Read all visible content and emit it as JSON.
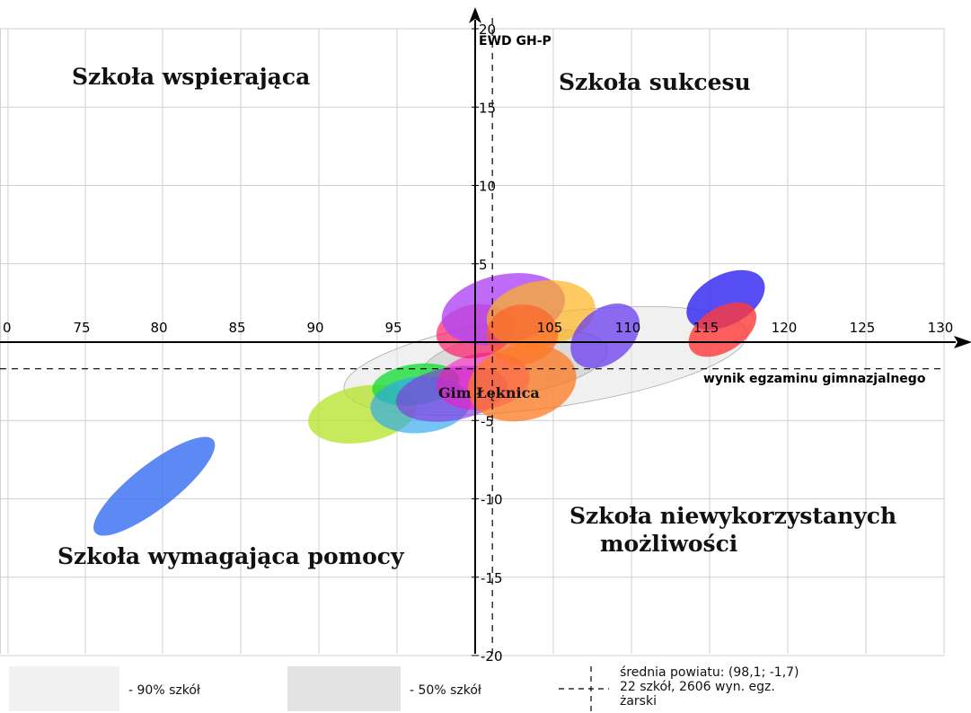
{
  "chart_data": {
    "type": "scatter",
    "xlabel": "wynik egzaminu gimnazjalnego",
    "ylabel": "EWD GH-P",
    "xlim": [
      70,
      130
    ],
    "ylim": [
      -20,
      20
    ],
    "x_ticks": [
      "0",
      "75",
      "80",
      "85",
      "90",
      "95",
      "105",
      "110",
      "115",
      "120",
      "125",
      "130"
    ],
    "y_ticks": [
      "20",
      "15",
      "10",
      "5",
      "-5",
      "-10",
      "-15",
      "-20"
    ],
    "grid": true,
    "mean_point": {
      "x": 98.1,
      "y": -1.7
    },
    "quadrants": {
      "top_left": "Szkoła wspierająca",
      "top_right": "Szkoła sukcesu",
      "bottom_left": "Szkoła wymagająca pomocy",
      "bottom_right_line1": "Szkoła niewykorzystanych",
      "bottom_right_line2": "możliwości"
    },
    "annotation": "Gim Łęknica",
    "ellipses": [
      {
        "kind": "90%",
        "cx": 101.5,
        "cy": -1.2,
        "rx": 13.0,
        "ry": 3.0,
        "angle": 8,
        "color": "#e4e4e4",
        "opacity": 0.55
      },
      {
        "kind": "50%",
        "cx": 99.5,
        "cy": -1.3,
        "rx": 6.0,
        "ry": 2.0,
        "angle": 8,
        "color": "#c8c8c8",
        "opacity": 0.55
      },
      {
        "cx": 76.5,
        "cy": -9.2,
        "rx": 4.8,
        "ry": 1.4,
        "angle": 38,
        "color": "#3f74f2",
        "opacity": 0.85
      },
      {
        "cx": 89.8,
        "cy": -4.6,
        "rx": 3.5,
        "ry": 1.8,
        "angle": 10,
        "color": "#b3e326",
        "opacity": 0.75
      },
      {
        "cx": 93.2,
        "cy": -2.7,
        "rx": 2.8,
        "ry": 1.3,
        "angle": 8,
        "color": "#1bdd3a",
        "opacity": 0.8
      },
      {
        "cx": 93.5,
        "cy": -4.0,
        "rx": 3.2,
        "ry": 1.8,
        "angle": 5,
        "color": "#2aa6f0",
        "opacity": 0.65
      },
      {
        "cx": 95.5,
        "cy": -3.3,
        "rx": 3.6,
        "ry": 1.7,
        "angle": 10,
        "color": "#8a2de3",
        "opacity": 0.6
      },
      {
        "cx": 97.5,
        "cy": -2.5,
        "rx": 3.0,
        "ry": 1.8,
        "angle": 8,
        "color": "#ff10c0",
        "opacity": 0.55
      },
      {
        "cx": 97.0,
        "cy": 0.7,
        "rx": 2.5,
        "ry": 1.7,
        "angle": 10,
        "color": "#ff1060",
        "opacity": 0.65
      },
      {
        "cx": 98.8,
        "cy": 2.1,
        "rx": 4.0,
        "ry": 2.2,
        "angle": 12,
        "color": "#b046f5",
        "opacity": 0.8
      },
      {
        "cx": 101.2,
        "cy": 1.8,
        "rx": 3.5,
        "ry": 2.1,
        "angle": 10,
        "color": "#ffb41e",
        "opacity": 0.7
      },
      {
        "cx": 100.0,
        "cy": 0.5,
        "rx": 2.3,
        "ry": 1.9,
        "angle": 5,
        "color": "#ff5a1e",
        "opacity": 0.6
      },
      {
        "cx": 100.0,
        "cy": -2.6,
        "rx": 3.5,
        "ry": 2.4,
        "angle": 12,
        "color": "#ff7a20",
        "opacity": 0.75
      },
      {
        "cx": 105.3,
        "cy": 0.4,
        "rx": 2.5,
        "ry": 1.7,
        "angle": 40,
        "color": "#6a3df0",
        "opacity": 0.75
      },
      {
        "cx": 113.0,
        "cy": 2.7,
        "rx": 2.7,
        "ry": 1.6,
        "angle": 28,
        "color": "#3a2ef2",
        "opacity": 0.85
      },
      {
        "cx": 112.8,
        "cy": 0.8,
        "rx": 2.4,
        "ry": 1.4,
        "angle": 32,
        "color": "#ff3a3a",
        "opacity": 0.8
      }
    ]
  },
  "legend": {
    "p90_label": "- 90% szkół",
    "p50_label": "- 50% szkół",
    "p90_color": "#f1f1f1",
    "p50_color": "#e3e3e3",
    "info_line1": "średnia powiatu: (98,1; -1,7)",
    "info_line2": "22 szkół, 2606 wyn. egz.",
    "info_line3": "żarski"
  }
}
